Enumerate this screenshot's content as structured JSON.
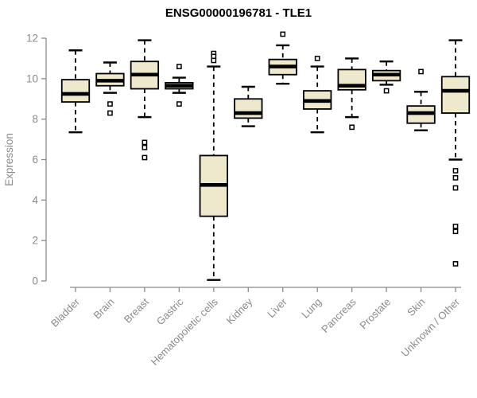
{
  "title": "ENSG00000196781 - TLE1",
  "chart_data": {
    "type": "boxplot",
    "title": "ENSG00000196781 - TLE1",
    "ylabel": "Expression",
    "xlabel": "",
    "ylim": [
      0,
      12
    ],
    "yticks": [
      0,
      2,
      4,
      6,
      8,
      10,
      12
    ],
    "grid": false,
    "legend": "none",
    "categories": [
      "Bladder",
      "Brain",
      "Breast",
      "Gastric",
      "Hematopoietic cells",
      "Kidney",
      "Liver",
      "Lung",
      "Pancreas",
      "Prostate",
      "Skin",
      "Unknown / Other"
    ],
    "boxes": [
      {
        "category": "Bladder",
        "low": 7.35,
        "q1": 8.85,
        "median": 9.25,
        "q3": 9.95,
        "high": 11.4,
        "outliers": []
      },
      {
        "category": "Brain",
        "low": 9.3,
        "q1": 9.65,
        "median": 9.9,
        "q3": 10.25,
        "high": 10.8,
        "outliers": [
          8.75,
          8.3
        ]
      },
      {
        "category": "Breast",
        "low": 8.1,
        "q1": 9.5,
        "median": 10.2,
        "q3": 10.85,
        "high": 11.9,
        "outliers": [
          6.85,
          6.6,
          6.1
        ]
      },
      {
        "category": "Gastric",
        "low": 9.3,
        "q1": 9.5,
        "median": 9.65,
        "q3": 9.8,
        "high": 10.05,
        "outliers": [
          10.6,
          8.75
        ]
      },
      {
        "category": "Hematopoietic cells",
        "low": 0.05,
        "q1": 3.2,
        "median": 4.75,
        "q3": 6.2,
        "high": 10.6,
        "outliers": [
          11.25,
          11.1,
          10.9
        ]
      },
      {
        "category": "Kidney",
        "low": 7.65,
        "q1": 8.05,
        "median": 8.3,
        "q3": 9.0,
        "high": 9.6,
        "outliers": []
      },
      {
        "category": "Liver",
        "low": 9.75,
        "q1": 10.2,
        "median": 10.6,
        "q3": 10.95,
        "high": 11.65,
        "outliers": [
          12.2
        ]
      },
      {
        "category": "Lung",
        "low": 7.35,
        "q1": 8.5,
        "median": 8.9,
        "q3": 9.4,
        "high": 10.6,
        "outliers": [
          11.0
        ]
      },
      {
        "category": "Pancreas",
        "low": 8.1,
        "q1": 9.45,
        "median": 9.65,
        "q3": 10.45,
        "high": 11.0,
        "outliers": [
          7.6
        ]
      },
      {
        "category": "Prostate",
        "low": 9.7,
        "q1": 9.9,
        "median": 10.2,
        "q3": 10.4,
        "high": 10.85,
        "outliers": [
          9.4
        ]
      },
      {
        "category": "Skin",
        "low": 7.45,
        "q1": 7.8,
        "median": 8.3,
        "q3": 8.65,
        "high": 9.35,
        "outliers": [
          10.35
        ]
      },
      {
        "category": "Unknown / Other",
        "low": 6.0,
        "q1": 8.3,
        "median": 9.4,
        "q3": 10.1,
        "high": 11.9,
        "outliers": [
          5.45,
          5.1,
          4.6,
          2.7,
          2.45,
          0.85
        ]
      }
    ],
    "colors": {
      "box_fill": "#EEE8CD",
      "box_stroke": "#000000",
      "median": "#000000",
      "whisker": "#000000",
      "outlier_fill": "#ffffff",
      "outlier_stroke": "#000000",
      "axis": "#8b8b8b",
      "tick_label": "#8b8b8b",
      "title": "#000000"
    }
  }
}
